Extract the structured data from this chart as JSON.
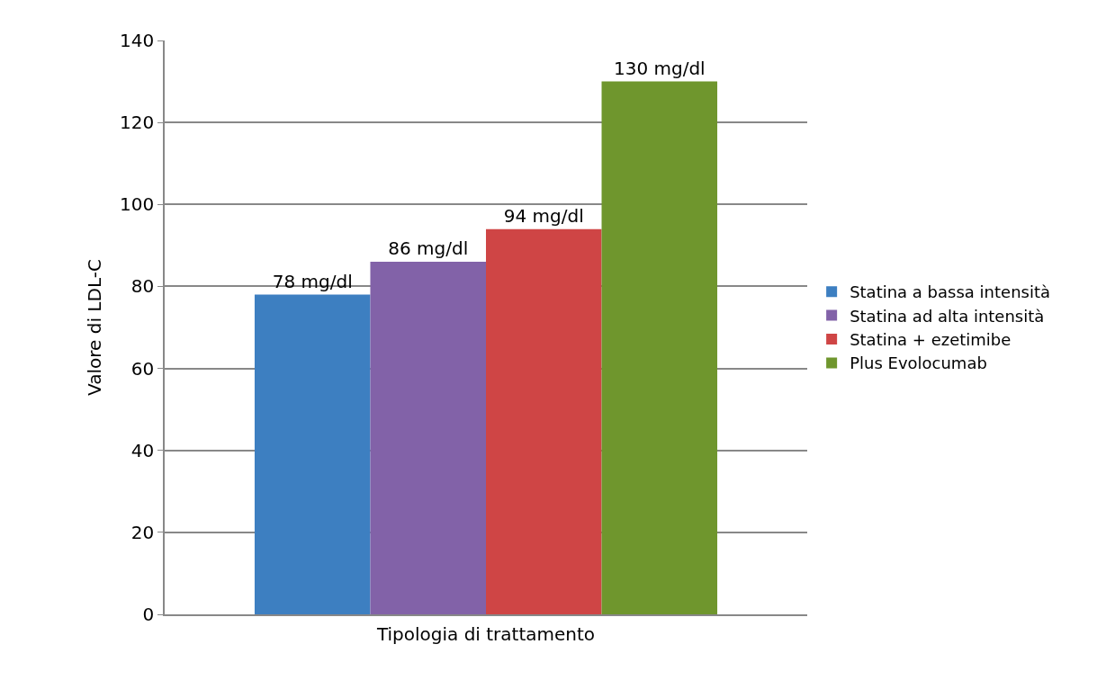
{
  "chart_data": {
    "type": "bar",
    "xlabel": "Tipologia di trattamento",
    "ylabel": "Valore di LDL-C",
    "categories": [
      null
    ],
    "series": [
      {
        "name": "Statina a bassa intensità",
        "color": "#3d7fc1",
        "values": [
          78
        ],
        "value_labels": [
          "78 mg/dl"
        ]
      },
      {
        "name": "Statina ad alta intensità",
        "color": "#8262a8",
        "values": [
          86
        ],
        "value_labels": [
          "86 mg/dl"
        ]
      },
      {
        "name": "Statina + ezetimibe",
        "color": "#cf4545",
        "values": [
          94
        ],
        "value_labels": [
          "94 mg/dl"
        ]
      },
      {
        "name": "Plus Evolocumab",
        "color": "#6f962d",
        "values": [
          130
        ],
        "value_labels": [
          "130 mg/dl"
        ]
      }
    ],
    "ylim": [
      0,
      140
    ],
    "yticks": [
      0,
      20,
      40,
      60,
      80,
      100,
      120,
      140
    ],
    "grid": "y",
    "legend": "right"
  }
}
